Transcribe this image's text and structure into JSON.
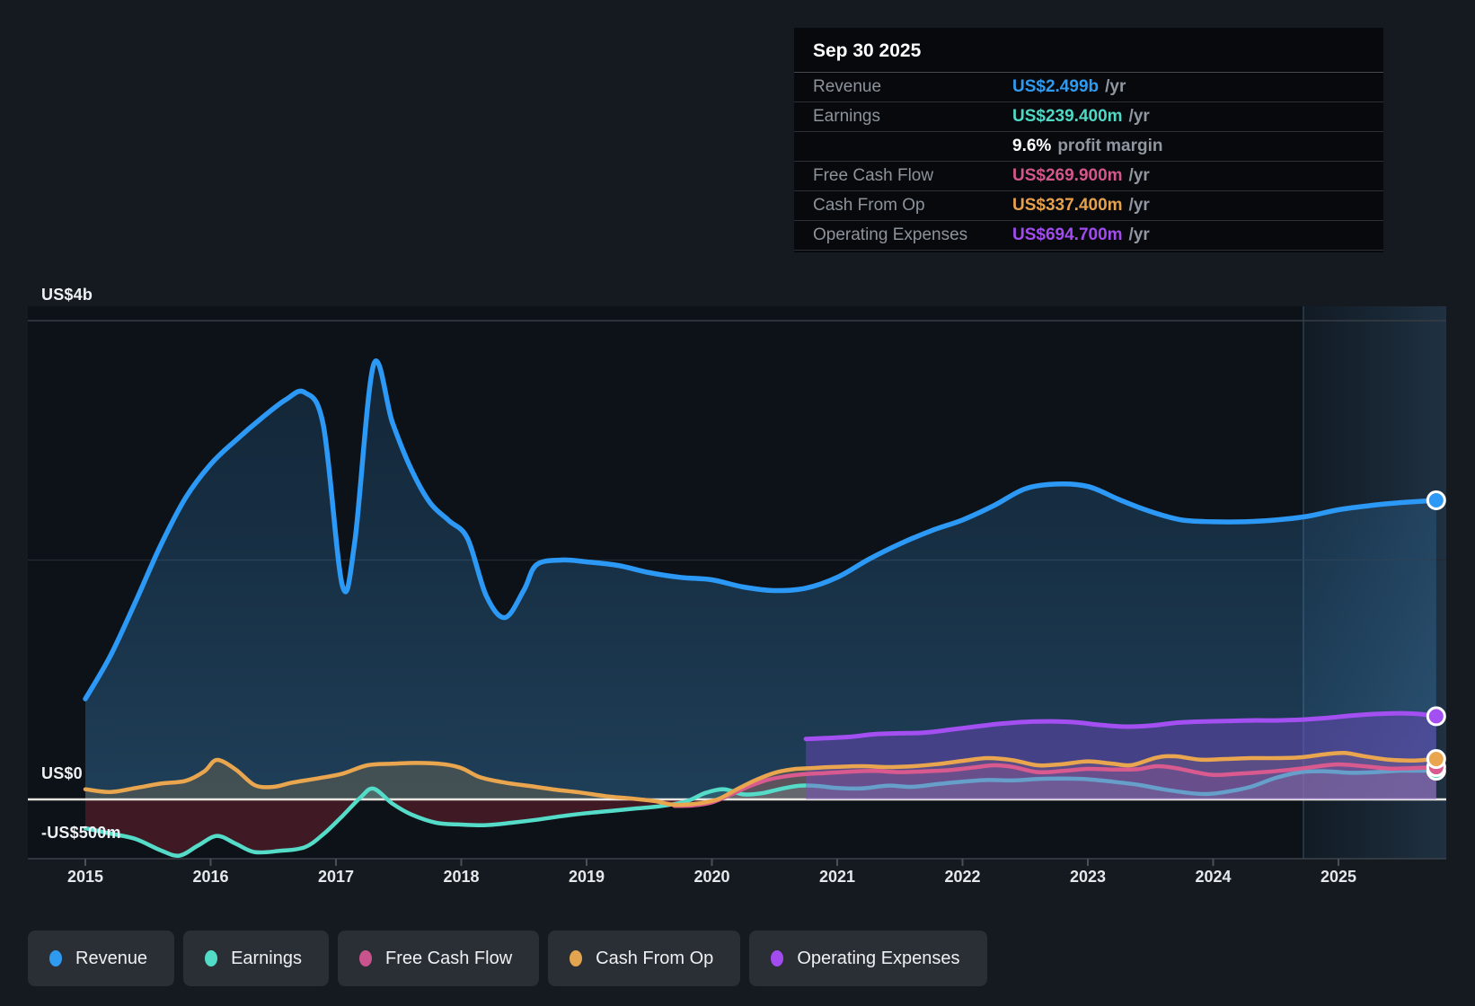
{
  "tooltip": {
    "date": "Sep 30 2025",
    "rows": [
      {
        "label": "Revenue",
        "value": "US$2.499b",
        "suffix": "/yr",
        "color": "#2e9bf0"
      },
      {
        "label": "Earnings",
        "value": "US$239.400m",
        "suffix": "/yr",
        "color": "#4fd8c4"
      },
      {
        "label": "",
        "value": "9.6%",
        "suffix": "profit margin",
        "color": "#ffffff",
        "margin_row": true
      },
      {
        "label": "Free Cash Flow",
        "value": "US$269.900m",
        "suffix": "/yr",
        "color": "#d4578c"
      },
      {
        "label": "Cash From Op",
        "value": "US$337.400m",
        "suffix": "/yr",
        "color": "#e7a04c"
      },
      {
        "label": "Operating Expenses",
        "value": "US$694.700m",
        "suffix": "/yr",
        "color": "#a24cf0"
      }
    ]
  },
  "legend": {
    "items": [
      {
        "label": "Revenue",
        "color": "#2e9bf0"
      },
      {
        "label": "Earnings",
        "color": "#52dcc8"
      },
      {
        "label": "Free Cash Flow",
        "color": "#c9538c"
      },
      {
        "label": "Cash From Op",
        "color": "#e2a44f"
      },
      {
        "label": "Operating Expenses",
        "color": "#a24cf0"
      }
    ]
  },
  "y_axis": {
    "labels": [
      {
        "text": "US$4b",
        "value": 4000
      },
      {
        "text": "US$0",
        "value": 0
      },
      {
        "text": "-US$500m",
        "value": -500
      }
    ]
  },
  "x_axis": {
    "years": [
      "2015",
      "2016",
      "2017",
      "2018",
      "2019",
      "2020",
      "2021",
      "2022",
      "2023",
      "2024",
      "2025"
    ]
  },
  "chart_data": {
    "type": "area",
    "unit": "US$ millions",
    "title": "Revenue & Expenses history to Sep 30 2025",
    "x_range": [
      2015,
      2025.78
    ],
    "y_range": [
      -500,
      4000
    ],
    "gridlines_values": [
      4000,
      2000,
      0,
      -500
    ],
    "zero_line_value": 0,
    "forecast_band": {
      "start_year": 2024.72,
      "end_year": 2025.86
    },
    "legend_position": "bottom",
    "series": [
      {
        "name": "Revenue",
        "color": "#2b99f5",
        "line_width": 5.5,
        "fill_pos": [
          "rgba(50,140,215,0.16)",
          "rgba(72,165,235,0.30)"
        ],
        "fill_neg": "rgba(165,45,60,0.0)",
        "points": [
          [
            2015,
            840
          ],
          [
            2015.2,
            1200
          ],
          [
            2015.4,
            1650
          ],
          [
            2015.6,
            2120
          ],
          [
            2015.8,
            2520
          ],
          [
            2016,
            2800
          ],
          [
            2016.2,
            3000
          ],
          [
            2016.4,
            3180
          ],
          [
            2016.6,
            3340
          ],
          [
            2016.75,
            3400
          ],
          [
            2016.9,
            3120
          ],
          [
            2017.05,
            1790
          ],
          [
            2017.15,
            2150
          ],
          [
            2017.3,
            3630
          ],
          [
            2017.45,
            3150
          ],
          [
            2017.6,
            2760
          ],
          [
            2017.75,
            2480
          ],
          [
            2017.9,
            2330
          ],
          [
            2018.05,
            2180
          ],
          [
            2018.2,
            1700
          ],
          [
            2018.35,
            1520
          ],
          [
            2018.5,
            1750
          ],
          [
            2018.6,
            1960
          ],
          [
            2018.8,
            2000
          ],
          [
            2019,
            1985
          ],
          [
            2019.25,
            1955
          ],
          [
            2019.5,
            1895
          ],
          [
            2019.75,
            1855
          ],
          [
            2020,
            1835
          ],
          [
            2020.25,
            1775
          ],
          [
            2020.5,
            1745
          ],
          [
            2020.75,
            1765
          ],
          [
            2021,
            1855
          ],
          [
            2021.25,
            2005
          ],
          [
            2021.5,
            2135
          ],
          [
            2021.75,
            2245
          ],
          [
            2022,
            2335
          ],
          [
            2022.25,
            2455
          ],
          [
            2022.5,
            2595
          ],
          [
            2022.75,
            2635
          ],
          [
            2023,
            2615
          ],
          [
            2023.25,
            2505
          ],
          [
            2023.5,
            2405
          ],
          [
            2023.75,
            2335
          ],
          [
            2024,
            2320
          ],
          [
            2024.25,
            2320
          ],
          [
            2024.5,
            2335
          ],
          [
            2024.75,
            2365
          ],
          [
            2025,
            2420
          ],
          [
            2025.25,
            2455
          ],
          [
            2025.5,
            2480
          ],
          [
            2025.78,
            2499
          ]
        ]
      },
      {
        "name": "Earnings",
        "color": "#55dcc9",
        "line_width": 4.5,
        "fill_pos": [
          "rgba(100,215,205,0.20)",
          "rgba(100,215,205,0.20)"
        ],
        "fill_neg": "rgba(160,42,58,0.34)",
        "points": [
          [
            2015,
            -240
          ],
          [
            2015.2,
            -285
          ],
          [
            2015.4,
            -330
          ],
          [
            2015.6,
            -425
          ],
          [
            2015.75,
            -470
          ],
          [
            2015.9,
            -385
          ],
          [
            2016.05,
            -305
          ],
          [
            2016.2,
            -370
          ],
          [
            2016.35,
            -440
          ],
          [
            2016.55,
            -430
          ],
          [
            2016.75,
            -400
          ],
          [
            2016.9,
            -290
          ],
          [
            2017.05,
            -140
          ],
          [
            2017.2,
            20
          ],
          [
            2017.3,
            90
          ],
          [
            2017.45,
            -35
          ],
          [
            2017.6,
            -125
          ],
          [
            2017.8,
            -195
          ],
          [
            2018,
            -210
          ],
          [
            2018.2,
            -215
          ],
          [
            2018.4,
            -195
          ],
          [
            2018.6,
            -170
          ],
          [
            2018.8,
            -140
          ],
          [
            2019,
            -115
          ],
          [
            2019.2,
            -95
          ],
          [
            2019.4,
            -75
          ],
          [
            2019.6,
            -55
          ],
          [
            2019.8,
            -15
          ],
          [
            2019.95,
            55
          ],
          [
            2020.1,
            85
          ],
          [
            2020.25,
            42
          ],
          [
            2020.4,
            52
          ],
          [
            2020.55,
            88
          ],
          [
            2020.7,
            115
          ],
          [
            2020.85,
            112
          ],
          [
            2021,
            95
          ],
          [
            2021.2,
            92
          ],
          [
            2021.4,
            115
          ],
          [
            2021.6,
            105
          ],
          [
            2021.8,
            128
          ],
          [
            2022,
            148
          ],
          [
            2022.2,
            162
          ],
          [
            2022.4,
            158
          ],
          [
            2022.6,
            170
          ],
          [
            2022.8,
            174
          ],
          [
            2023,
            168
          ],
          [
            2023.2,
            148
          ],
          [
            2023.4,
            122
          ],
          [
            2023.6,
            85
          ],
          [
            2023.8,
            55
          ],
          [
            2023.95,
            45
          ],
          [
            2024.1,
            62
          ],
          [
            2024.3,
            105
          ],
          [
            2024.5,
            180
          ],
          [
            2024.7,
            228
          ],
          [
            2024.9,
            235
          ],
          [
            2025.1,
            222
          ],
          [
            2025.3,
            228
          ],
          [
            2025.5,
            240
          ],
          [
            2025.78,
            239.4
          ]
        ]
      },
      {
        "name": "Free Cash Flow",
        "color": "#d85a8e",
        "line_width": 4.5,
        "fill_pos": [
          "rgba(215,95,145,0.16)",
          "rgba(215,95,145,0.16)"
        ],
        "fill_neg": "rgba(160,42,58,0.22)",
        "points": [
          [
            2019.7,
            -55
          ],
          [
            2019.85,
            -50
          ],
          [
            2020,
            -25
          ],
          [
            2020.15,
            40
          ],
          [
            2020.3,
            110
          ],
          [
            2020.45,
            165
          ],
          [
            2020.6,
            195
          ],
          [
            2020.75,
            212
          ],
          [
            2020.9,
            220
          ],
          [
            2021.1,
            232
          ],
          [
            2021.3,
            238
          ],
          [
            2021.5,
            228
          ],
          [
            2021.7,
            235
          ],
          [
            2021.9,
            245
          ],
          [
            2022.1,
            268
          ],
          [
            2022.25,
            285
          ],
          [
            2022.4,
            272
          ],
          [
            2022.6,
            228
          ],
          [
            2022.8,
            238
          ],
          [
            2023,
            255
          ],
          [
            2023.2,
            250
          ],
          [
            2023.4,
            252
          ],
          [
            2023.55,
            278
          ],
          [
            2023.7,
            262
          ],
          [
            2023.85,
            230
          ],
          [
            2024,
            205
          ],
          [
            2024.2,
            215
          ],
          [
            2024.45,
            232
          ],
          [
            2024.65,
            252
          ],
          [
            2024.85,
            278
          ],
          [
            2025,
            293
          ],
          [
            2025.2,
            278
          ],
          [
            2025.4,
            258
          ],
          [
            2025.6,
            262
          ],
          [
            2025.78,
            269.9
          ]
        ]
      },
      {
        "name": "Cash From Op",
        "color": "#eaa64f",
        "line_width": 4.5,
        "fill_pos": [
          "rgba(215,160,75,0.20)",
          "rgba(215,160,75,0.20)"
        ],
        "fill_neg": "rgba(160,42,58,0.25)",
        "points": [
          [
            2015,
            85
          ],
          [
            2015.2,
            62
          ],
          [
            2015.4,
            95
          ],
          [
            2015.6,
            132
          ],
          [
            2015.8,
            155
          ],
          [
            2015.95,
            235
          ],
          [
            2016.05,
            330
          ],
          [
            2016.2,
            250
          ],
          [
            2016.35,
            120
          ],
          [
            2016.5,
            105
          ],
          [
            2016.65,
            140
          ],
          [
            2016.85,
            175
          ],
          [
            2017.05,
            215
          ],
          [
            2017.25,
            285
          ],
          [
            2017.45,
            298
          ],
          [
            2017.65,
            305
          ],
          [
            2017.85,
            295
          ],
          [
            2018,
            262
          ],
          [
            2018.15,
            185
          ],
          [
            2018.35,
            140
          ],
          [
            2018.55,
            112
          ],
          [
            2018.75,
            82
          ],
          [
            2018.95,
            58
          ],
          [
            2019.15,
            28
          ],
          [
            2019.35,
            8
          ],
          [
            2019.55,
            -15
          ],
          [
            2019.7,
            -45
          ],
          [
            2019.9,
            -32
          ],
          [
            2020.05,
            2
          ],
          [
            2020.2,
            85
          ],
          [
            2020.35,
            162
          ],
          [
            2020.5,
            222
          ],
          [
            2020.65,
            252
          ],
          [
            2020.8,
            262
          ],
          [
            2021,
            272
          ],
          [
            2021.2,
            278
          ],
          [
            2021.4,
            270
          ],
          [
            2021.6,
            277
          ],
          [
            2021.8,
            295
          ],
          [
            2022,
            322
          ],
          [
            2022.2,
            345
          ],
          [
            2022.4,
            328
          ],
          [
            2022.6,
            285
          ],
          [
            2022.8,
            295
          ],
          [
            2023,
            318
          ],
          [
            2023.2,
            298
          ],
          [
            2023.35,
            287
          ],
          [
            2023.55,
            350
          ],
          [
            2023.7,
            360
          ],
          [
            2023.9,
            332
          ],
          [
            2024.1,
            338
          ],
          [
            2024.3,
            345
          ],
          [
            2024.5,
            345
          ],
          [
            2024.7,
            352
          ],
          [
            2024.9,
            378
          ],
          [
            2025.05,
            388
          ],
          [
            2025.2,
            362
          ],
          [
            2025.4,
            332
          ],
          [
            2025.6,
            325
          ],
          [
            2025.78,
            337.4
          ]
        ]
      },
      {
        "name": "Operating Expenses",
        "color": "#a44ff2",
        "line_width": 5,
        "fill_pos": [
          "rgba(125,75,205,0.42)",
          "rgba(125,75,205,0.42)"
        ],
        "fill_neg": "rgba(125,75,205,0.3)",
        "points": [
          [
            2020.75,
            505
          ],
          [
            2020.9,
            512
          ],
          [
            2021.1,
            522
          ],
          [
            2021.3,
            545
          ],
          [
            2021.5,
            552
          ],
          [
            2021.7,
            558
          ],
          [
            2021.9,
            582
          ],
          [
            2022.1,
            608
          ],
          [
            2022.3,
            632
          ],
          [
            2022.5,
            648
          ],
          [
            2022.7,
            652
          ],
          [
            2022.9,
            645
          ],
          [
            2023.1,
            622
          ],
          [
            2023.3,
            608
          ],
          [
            2023.5,
            616
          ],
          [
            2023.7,
            640
          ],
          [
            2023.9,
            650
          ],
          [
            2024.1,
            655
          ],
          [
            2024.3,
            660
          ],
          [
            2024.5,
            660
          ],
          [
            2024.7,
            666
          ],
          [
            2024.9,
            680
          ],
          [
            2025.1,
            700
          ],
          [
            2025.3,
            714
          ],
          [
            2025.5,
            720
          ],
          [
            2025.65,
            713
          ],
          [
            2025.78,
            694.7
          ]
        ]
      }
    ]
  }
}
